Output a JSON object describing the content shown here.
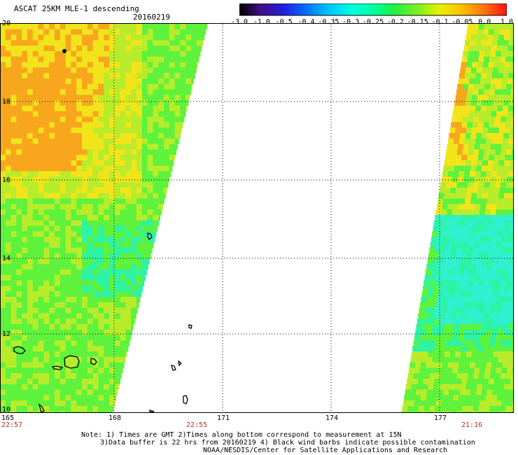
{
  "header": {
    "title": "ASCAT 25KM MLE-1 descending",
    "date": "20160219"
  },
  "colorbar": {
    "labels": [
      "-3.0",
      "-1.0",
      "-0.5",
      "-0.4",
      "-0.35",
      "-0.3",
      "-0.25",
      "-0.2",
      "-0.15",
      "-0.1",
      "-0.05",
      "0.0",
      "1.0"
    ],
    "colors": [
      "#000000",
      "#40108a",
      "#2020e0",
      "#0070ff",
      "#00c0ff",
      "#00ffe0",
      "#00ffa0",
      "#20f040",
      "#80f020",
      "#e8f000",
      "#ffc000",
      "#ff7010",
      "#ff1010"
    ]
  },
  "map": {
    "lat_labels": [
      "20",
      "18",
      "16",
      "14",
      "12",
      "10"
    ],
    "lon_labels": [
      "165",
      "168",
      "171",
      "174",
      "177"
    ],
    "times": [
      "22:57",
      "22:55",
      "21:16"
    ],
    "colors": {
      "orange": "#f7a61e",
      "yellow": "#f2e41a",
      "yellowgreen": "#b8ec2a",
      "green": "#5ef23c",
      "aqua": "#2ef2a4",
      "cyan": "#30f0d0"
    }
  },
  "notes": {
    "line1": "Note: 1) Times are GMT 2)Times along bottom correspond to measurement at 15N",
    "line2": "3)Data buffer is 22 hrs from 20160219 4) Black wind barbs indicate possible contamination",
    "line3": "NOAA/NESDIS/Center for Satellite Applications and Research"
  }
}
